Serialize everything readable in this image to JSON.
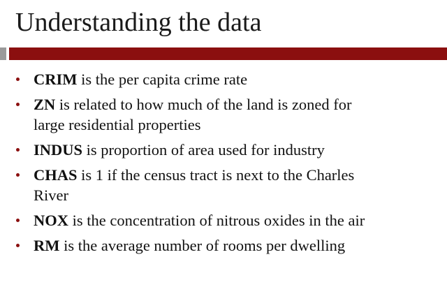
{
  "slide": {
    "title": "Understanding the data",
    "colors": {
      "accent_bar": "#8b0f0f",
      "side_bar": "#9a9a9a",
      "bullet": "#8b0f0f"
    },
    "bullets": [
      {
        "term": "CRIM",
        "line1": " is the per capita crime rate",
        "line2": ""
      },
      {
        "term": "ZN",
        "line1": " is related to how much of the land is zoned for",
        "line2": "large residential properties"
      },
      {
        "term": "INDUS",
        "line1": " is proportion of area used for industry",
        "line2": ""
      },
      {
        "term": "CHAS",
        "line1": " is 1 if the census tract is next to the Charles",
        "line2": "River"
      },
      {
        "term": "NOX",
        "line1": " is the concentration of nitrous oxides in the air",
        "line2": ""
      },
      {
        "term": "RM",
        "line1": " is the average number of rooms per dwelling",
        "line2": ""
      }
    ]
  }
}
